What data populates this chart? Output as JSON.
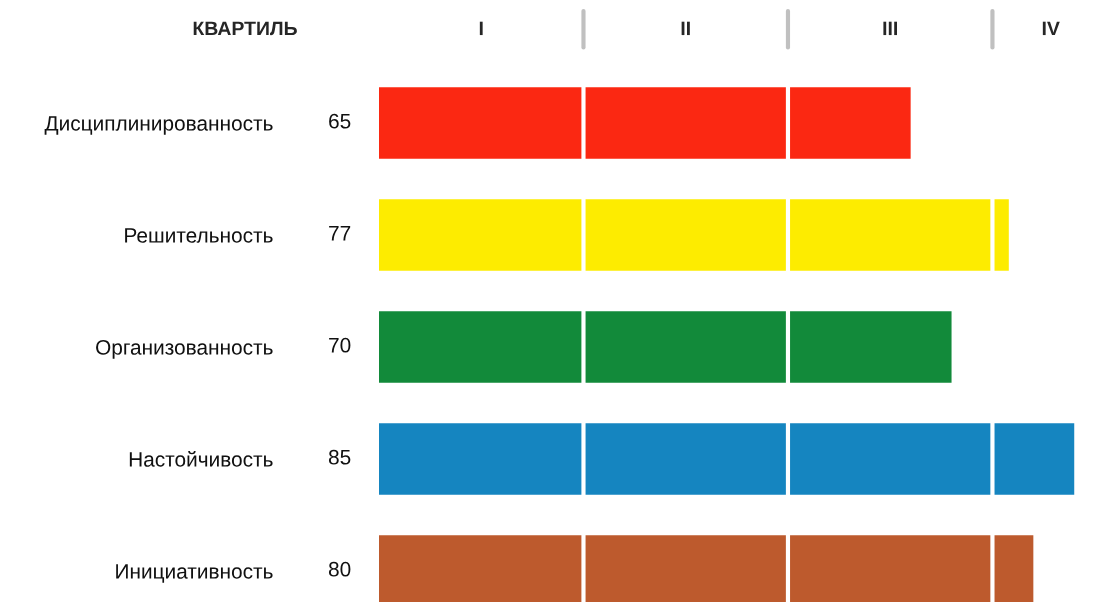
{
  "chart_data": {
    "type": "bar",
    "orientation": "horizontal",
    "xlabel": "КВАРТИЛЬ",
    "categories": [
      "Дисциплинированность",
      "Решительность",
      "Организованность",
      "Настойчивость",
      "Инициативность"
    ],
    "values": [
      65,
      77,
      70,
      85,
      80
    ],
    "colors": [
      "#fb2812",
      "#fdec00",
      "#128a3a",
      "#1585c0",
      "#bd5a2d"
    ],
    "data_labels": true,
    "annotations": [
      "I",
      "II",
      "III",
      "IV"
    ],
    "ref_lines": [
      {
        "axis": "x",
        "value": 25,
        "color": "#ffffff"
      },
      {
        "axis": "x",
        "value": 50,
        "color": "#ffffff"
      },
      {
        "axis": "x",
        "value": 75,
        "color": "#ffffff"
      }
    ],
    "grid": false
  }
}
